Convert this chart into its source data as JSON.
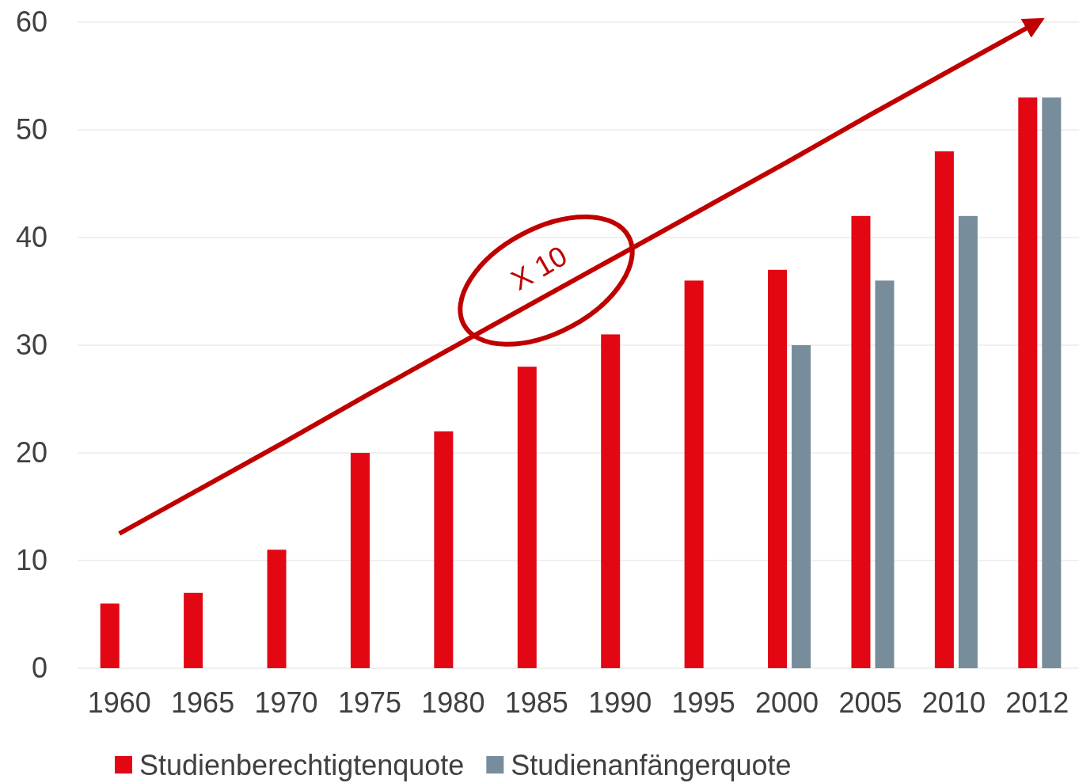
{
  "chart_data": {
    "type": "bar",
    "categories": [
      "1960",
      "1965",
      "1970",
      "1975",
      "1980",
      "1985",
      "1990",
      "1995",
      "2000",
      "2005",
      "2010",
      "2012"
    ],
    "series": [
      {
        "name": "Studienberechtigtenquote",
        "color": "#e30613",
        "values": [
          6,
          7,
          11,
          20,
          22,
          28,
          31,
          36,
          37,
          42,
          48,
          53
        ]
      },
      {
        "name": "Studienanfängerquote",
        "color": "#778d9b",
        "values": [
          null,
          null,
          null,
          null,
          null,
          null,
          null,
          null,
          30,
          36,
          42,
          53
        ]
      },
      {
        "type": "line",
        "color": "#c00000",
        "values": [
          12.5,
          16.8,
          21.1,
          25.5,
          29.8,
          34.1,
          38.4,
          42.7,
          47.0,
          51.4,
          55.7,
          60
        ]
      }
    ],
    "ylim": [
      0,
      60
    ],
    "yticks": [
      0,
      10,
      20,
      30,
      40,
      50,
      60
    ],
    "grid": "y",
    "legend": "bottom",
    "annotations": [
      "X 10"
    ]
  }
}
